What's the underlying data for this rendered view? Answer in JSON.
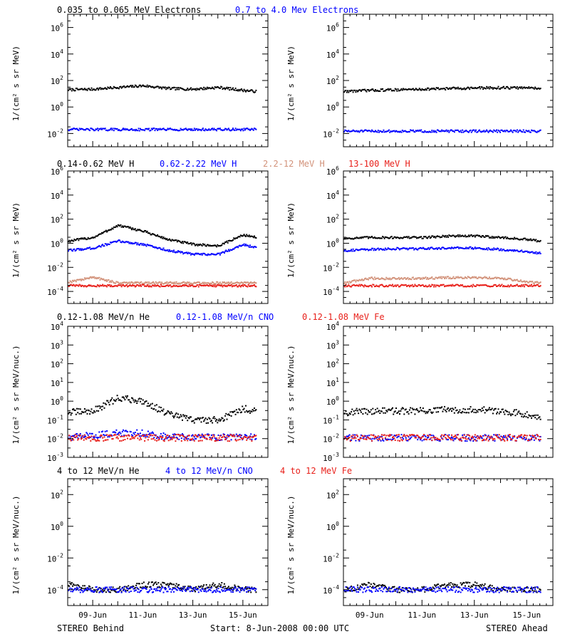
{
  "panel_rows": [
    {
      "legend": [
        {
          "text": "0.035 to 0.065 MeV Electrons",
          "color": "#000000"
        },
        {
          "text": "0.7 to 4.0 Mev Electrons",
          "color": "#0000ff"
        }
      ],
      "ylabel": "1/(cm² s sr MeV)",
      "yticks": [
        {
          "mant": "10",
          "exp": "6"
        },
        {
          "mant": "10",
          "exp": "4"
        },
        {
          "mant": "10",
          "exp": "2"
        },
        {
          "mant": "10",
          "exp": "0"
        },
        {
          "mant": "10",
          "exp": "-2"
        }
      ]
    },
    {
      "legend": [
        {
          "text": "0.14-0.62 MeV H",
          "color": "#000000"
        },
        {
          "text": "0.62-2.22 MeV H",
          "color": "#0000ff"
        },
        {
          "text": "2.2-12 MeV H",
          "color": "#d2927a"
        },
        {
          "text": "13-100 MeV H",
          "color": "#e8201a"
        }
      ],
      "ylabel": "1/(cm² s sr MeV)",
      "yticks": [
        {
          "mant": "10",
          "exp": "6"
        },
        {
          "mant": "10",
          "exp": "4"
        },
        {
          "mant": "10",
          "exp": "2"
        },
        {
          "mant": "10",
          "exp": "0"
        },
        {
          "mant": "10",
          "exp": "-2"
        },
        {
          "mant": "10",
          "exp": "-4"
        }
      ]
    },
    {
      "legend": [
        {
          "text": "0.12-1.08 MeV/n He",
          "color": "#000000"
        },
        {
          "text": "0.12-1.08 MeV/n CNO",
          "color": "#0000ff"
        },
        {
          "text": "0.12-1.08 MeV Fe",
          "color": "#e8201a"
        }
      ],
      "ylabel": "1/(cm² s sr MeV/nuc.)",
      "yticks": [
        {
          "mant": "10",
          "exp": "4"
        },
        {
          "mant": "10",
          "exp": "3"
        },
        {
          "mant": "10",
          "exp": "2"
        },
        {
          "mant": "10",
          "exp": "1"
        },
        {
          "mant": "10",
          "exp": "0"
        },
        {
          "mant": "10",
          "exp": "-1"
        },
        {
          "mant": "10",
          "exp": "-2"
        },
        {
          "mant": "10",
          "exp": "-3"
        }
      ]
    },
    {
      "legend": [
        {
          "text": "4 to 12 MeV/n He",
          "color": "#000000"
        },
        {
          "text": "4 to 12 MeV/n CNO",
          "color": "#0000ff"
        },
        {
          "text": "4 to 12 MeV Fe",
          "color": "#e8201a"
        }
      ],
      "ylabel": "1/(cm² s sr MeV/nuc.)",
      "yticks": [
        {
          "mant": "10",
          "exp": "2"
        },
        {
          "mant": "10",
          "exp": "0"
        },
        {
          "mant": "10",
          "exp": "-2"
        },
        {
          "mant": "10",
          "exp": "-4"
        }
      ]
    }
  ],
  "x_tick_labels": [
    "09-Jun",
    "11-Jun",
    "13-Jun",
    "15-Jun"
  ],
  "footer": {
    "left": "STEREO Behind",
    "center": "Start:  8-Jun-2008 00:00 UTC",
    "right": "STEREO Ahead"
  },
  "chart_data": [
    {
      "type": "scatter",
      "spacecraft": "STEREO Behind",
      "x": [
        "2008-06-08",
        "2008-06-09",
        "2008-06-10",
        "2008-06-11",
        "2008-06-12",
        "2008-06-13",
        "2008-06-14",
        "2008-06-15",
        "2008-06-15T12:00"
      ],
      "ylim": [
        0.001,
        10000000
      ],
      "yscale": "log",
      "series": [
        {
          "name": "0.035 to 0.065 MeV Electrons",
          "color": "#000000",
          "values": [
            20,
            22,
            30,
            40,
            25,
            22,
            30,
            18,
            15
          ]
        },
        {
          "name": "0.7 to 4.0 Mev Electrons",
          "color": "#0000ff",
          "values": [
            0.02,
            0.02,
            0.02,
            0.02,
            0.02,
            0.02,
            0.02,
            0.02,
            0.02
          ]
        }
      ]
    },
    {
      "type": "scatter",
      "spacecraft": "STEREO Ahead",
      "x": [
        "2008-06-08",
        "2008-06-09",
        "2008-06-10",
        "2008-06-11",
        "2008-06-12",
        "2008-06-13",
        "2008-06-14",
        "2008-06-15",
        "2008-06-15T12:00"
      ],
      "ylim": [
        0.001,
        10000000
      ],
      "yscale": "log",
      "series": [
        {
          "name": "0.035 to 0.065 MeV Electrons",
          "color": "#000000",
          "values": [
            15,
            18,
            20,
            22,
            25,
            27,
            28,
            28,
            27
          ]
        },
        {
          "name": "0.7 to 4.0 Mev Electrons",
          "color": "#0000ff",
          "values": [
            0.015,
            0.015,
            0.015,
            0.015,
            0.015,
            0.015,
            0.015,
            0.015,
            0.015
          ]
        }
      ]
    },
    {
      "type": "scatter",
      "spacecraft": "STEREO Behind",
      "x": [
        "2008-06-08",
        "2008-06-09",
        "2008-06-10",
        "2008-06-11",
        "2008-06-12",
        "2008-06-13",
        "2008-06-14",
        "2008-06-15",
        "2008-06-15T12:00"
      ],
      "ylim": [
        1e-05,
        1000000
      ],
      "yscale": "log",
      "series": [
        {
          "name": "0.14-0.62 MeV H",
          "color": "#000000",
          "values": [
            1.5,
            3,
            30,
            10,
            2,
            0.8,
            0.6,
            5,
            3
          ]
        },
        {
          "name": "0.62-2.22 MeV H",
          "color": "#0000ff",
          "values": [
            0.25,
            0.4,
            1.5,
            0.8,
            0.25,
            0.12,
            0.12,
            0.8,
            0.4
          ]
        },
        {
          "name": "2.2-12 MeV H",
          "color": "#d2927a",
          "values": [
            0.0006,
            0.0015,
            0.0005,
            0.0005,
            0.0005,
            0.0005,
            0.0005,
            0.0005,
            0.0005
          ]
        },
        {
          "name": "13-100 MeV H",
          "color": "#e8201a",
          "values": [
            0.0003,
            0.0003,
            0.0003,
            0.0003,
            0.0003,
            0.0003,
            0.0003,
            0.0003,
            0.0003
          ]
        }
      ]
    },
    {
      "type": "scatter",
      "spacecraft": "STEREO Ahead",
      "x": [
        "2008-06-08",
        "2008-06-09",
        "2008-06-10",
        "2008-06-11",
        "2008-06-12",
        "2008-06-13",
        "2008-06-14",
        "2008-06-15",
        "2008-06-15T12:00"
      ],
      "ylim": [
        1e-05,
        1000000
      ],
      "yscale": "log",
      "series": [
        {
          "name": "0.14-0.62 MeV H",
          "color": "#000000",
          "values": [
            2.5,
            3,
            3,
            3,
            4,
            4,
            3,
            2,
            1.5
          ]
        },
        {
          "name": "0.62-2.22 MeV H",
          "color": "#0000ff",
          "values": [
            0.25,
            0.3,
            0.35,
            0.35,
            0.4,
            0.4,
            0.3,
            0.2,
            0.15
          ]
        },
        {
          "name": "2.2-12 MeV H",
          "color": "#d2927a",
          "values": [
            0.0005,
            0.0012,
            0.0012,
            0.0012,
            0.0014,
            0.0014,
            0.0013,
            0.0006,
            0.0005
          ]
        },
        {
          "name": "13-100 MeV H",
          "color": "#e8201a",
          "values": [
            0.0003,
            0.0003,
            0.0003,
            0.0003,
            0.0003,
            0.0003,
            0.0003,
            0.0003,
            0.0003
          ]
        }
      ]
    },
    {
      "type": "scatter",
      "spacecraft": "STEREO Behind",
      "x": [
        "2008-06-08",
        "2008-06-09",
        "2008-06-10",
        "2008-06-11",
        "2008-06-12",
        "2008-06-13",
        "2008-06-14",
        "2008-06-15",
        "2008-06-15T12:00"
      ],
      "ylim": [
        0.001,
        10000
      ],
      "yscale": "log",
      "series": [
        {
          "name": "0.12-1.08 MeV/n He",
          "color": "#000000",
          "values": [
            0.25,
            0.3,
            1.5,
            1.0,
            0.2,
            0.1,
            0.1,
            0.4,
            0.3
          ]
        },
        {
          "name": "0.12-1.08 MeV/n CNO",
          "color": "#0000ff",
          "values": [
            0.012,
            0.015,
            0.02,
            0.02,
            0.012,
            0.012,
            0.012,
            0.012,
            0.012
          ]
        },
        {
          "name": "0.12-1.08 MeV Fe",
          "color": "#e8201a",
          "values": [
            0.011,
            0.011,
            0.011,
            0.011,
            0.011,
            0.011,
            0.011,
            0.011,
            0.011
          ]
        }
      ]
    },
    {
      "type": "scatter",
      "spacecraft": "STEREO Ahead",
      "x": [
        "2008-06-08",
        "2008-06-09",
        "2008-06-10",
        "2008-06-11",
        "2008-06-12",
        "2008-06-13",
        "2008-06-14",
        "2008-06-15",
        "2008-06-15T12:00"
      ],
      "ylim": [
        0.001,
        10000
      ],
      "yscale": "log",
      "series": [
        {
          "name": "0.12-1.08 MeV/n He",
          "color": "#000000",
          "values": [
            0.25,
            0.3,
            0.3,
            0.3,
            0.35,
            0.35,
            0.3,
            0.2,
            0.15
          ]
        },
        {
          "name": "0.12-1.08 MeV/n CNO",
          "color": "#0000ff",
          "values": [
            0.011,
            0.011,
            0.011,
            0.011,
            0.011,
            0.011,
            0.011,
            0.011,
            0.011
          ]
        },
        {
          "name": "0.12-1.08 MeV Fe",
          "color": "#e8201a",
          "values": [
            0.011,
            0.011,
            0.011,
            0.011,
            0.011,
            0.011,
            0.011,
            0.011,
            0.011
          ]
        }
      ]
    },
    {
      "type": "scatter",
      "spacecraft": "STEREO Behind",
      "x": [
        "2008-06-08",
        "2008-06-09",
        "2008-06-10",
        "2008-06-11",
        "2008-06-12",
        "2008-06-13",
        "2008-06-14",
        "2008-06-15",
        "2008-06-15T12:00"
      ],
      "ylim": [
        1e-05,
        1000
      ],
      "yscale": "log",
      "series": [
        {
          "name": "4 to 12 MeV/n He",
          "color": "#000000",
          "values": [
            0.0002,
            0.0001,
            0.0001,
            0.0002,
            0.0002,
            0.0001,
            0.0002,
            0.0001,
            0.0001
          ]
        },
        {
          "name": "4 to 12 MeV/n CNO",
          "color": "#0000ff",
          "values": [
            0.0001,
            0.0001,
            0.0001,
            0.0001,
            0.0001,
            0.0001,
            0.0001,
            0.0001,
            0.0001
          ]
        }
      ]
    },
    {
      "type": "scatter",
      "spacecraft": "STEREO Ahead",
      "x": [
        "2008-06-08",
        "2008-06-09",
        "2008-06-10",
        "2008-06-11",
        "2008-06-12",
        "2008-06-13",
        "2008-06-14",
        "2008-06-15",
        "2008-06-15T12:00"
      ],
      "ylim": [
        1e-05,
        1000
      ],
      "yscale": "log",
      "series": [
        {
          "name": "4 to 12 MeV/n He",
          "color": "#000000",
          "values": [
            0.0001,
            0.0002,
            0.0001,
            0.0001,
            0.0002,
            0.0002,
            0.0001,
            0.0001,
            0.0001
          ]
        },
        {
          "name": "4 to 12 MeV/n CNO",
          "color": "#0000ff",
          "values": [
            0.0001,
            0.0001,
            0.0001,
            0.0001,
            0.0001,
            0.0001,
            0.0001,
            0.0001,
            0.0001
          ]
        }
      ]
    }
  ]
}
